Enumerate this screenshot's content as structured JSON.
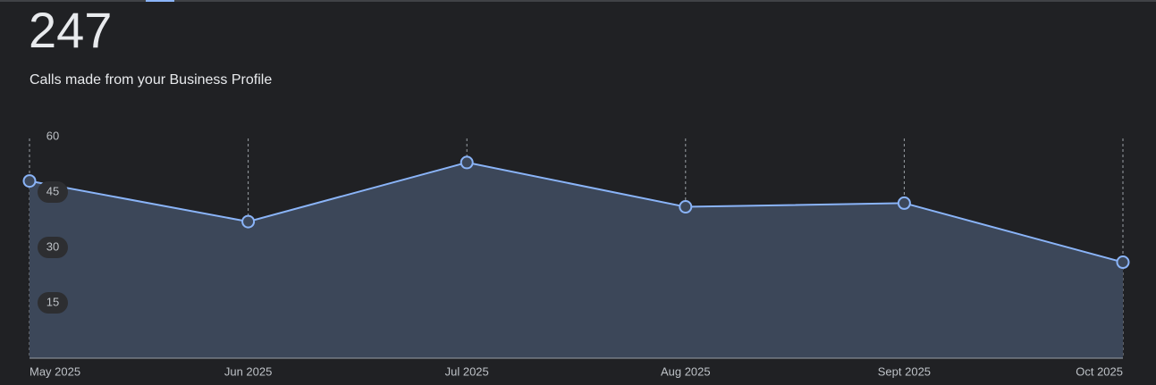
{
  "headline": "247",
  "subtitle": "Calls made from your Business Profile",
  "chart_data": {
    "type": "area",
    "categories": [
      "May 2025",
      "Jun 2025",
      "Jul 2025",
      "Aug 2025",
      "Sept 2025",
      "Oct 2025"
    ],
    "values": [
      48,
      37,
      53,
      41,
      42,
      26
    ],
    "color": "#8ab4f8",
    "fill": "#3c4759",
    "ylim": [
      0,
      60
    ],
    "yticks": [
      15,
      30,
      45,
      60
    ],
    "grid": true
  }
}
